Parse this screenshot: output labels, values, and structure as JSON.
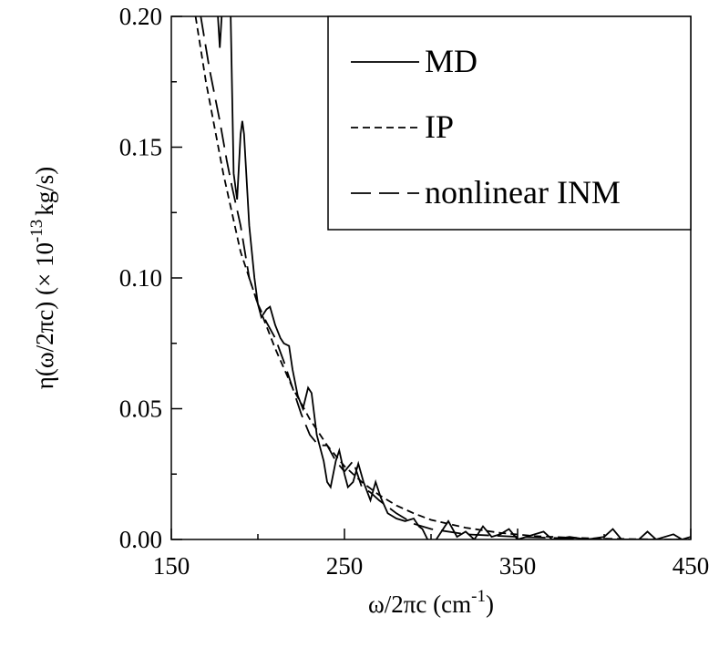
{
  "chart_data": {
    "type": "line",
    "xlabel": [
      "ω/2πc (cm",
      "-1",
      ")"
    ],
    "ylabel": [
      "η(ω/2πc) (× 10",
      "-13",
      "kg/s)"
    ],
    "xlim": [
      150,
      450
    ],
    "ylim": [
      0,
      0.2
    ],
    "xticks": [
      150,
      250,
      350,
      450
    ],
    "xminor_ticks": [
      200,
      300,
      400
    ],
    "yticks": [
      {
        "value": 0,
        "label": "0.00"
      },
      0.05,
      {
        "value": 0.1,
        "label": "0.10"
      },
      0.15,
      {
        "value": 0.2,
        "label": "0.20"
      }
    ],
    "yminor_ticks": [
      0.025,
      0.075,
      0.125,
      0.175
    ],
    "legend": "upper right",
    "series": [
      {
        "name": "MD",
        "color": "#000000",
        "dash": "solid",
        "x": [
          176,
          178,
          180,
          184,
          186,
          188,
          190,
          191,
          192,
          195,
          198,
          200,
          202,
          205,
          207,
          210,
          213,
          215,
          218,
          220,
          223,
          226,
          229,
          231,
          234,
          238,
          240,
          242,
          245,
          247,
          250,
          252,
          255,
          258,
          261,
          265,
          268,
          271,
          275,
          280,
          285,
          290,
          293,
          295,
          298,
          300,
          305,
          310,
          315,
          320,
          325,
          330,
          335,
          340,
          345,
          350,
          355,
          360,
          365,
          370,
          380,
          390,
          400,
          405,
          410,
          420,
          425,
          430,
          440,
          445,
          450
        ],
        "values": [
          0.21,
          0.188,
          0.21,
          0.21,
          0.14,
          0.13,
          0.155,
          0.16,
          0.155,
          0.12,
          0.1,
          0.09,
          0.085,
          0.088,
          0.089,
          0.082,
          0.077,
          0.075,
          0.074,
          0.065,
          0.055,
          0.05,
          0.058,
          0.056,
          0.04,
          0.03,
          0.022,
          0.02,
          0.03,
          0.034,
          0.025,
          0.02,
          0.022,
          0.029,
          0.022,
          0.015,
          0.022,
          0.016,
          0.01,
          0.008,
          0.007,
          0.008,
          0.005,
          0.004,
          0,
          -0.003,
          0.002,
          0.007,
          0.001,
          0.003,
          0,
          0.005,
          0.001,
          0.002,
          0.004,
          0,
          0.001,
          0.002,
          0.003,
          0,
          0.001,
          0,
          0.001,
          0.004,
          0,
          0,
          0.003,
          0,
          0.002,
          0,
          0.001
        ]
      },
      {
        "name": "IP",
        "color": "#000000",
        "dash": "short",
        "x": [
          164,
          170,
          180,
          190,
          200,
          210,
          220,
          230,
          240,
          250,
          260,
          270,
          280,
          290,
          300,
          320,
          340,
          360,
          380,
          400,
          420,
          450
        ],
        "values": [
          0.2,
          0.175,
          0.14,
          0.11,
          0.09,
          0.073,
          0.058,
          0.046,
          0.036,
          0.028,
          0.022,
          0.017,
          0.013,
          0.01,
          0.0075,
          0.0045,
          0.0025,
          0.0013,
          0.0007,
          0.0003,
          0.0001,
          0
        ]
      },
      {
        "name": "nonlinear INM",
        "color": "#000000",
        "dash": "long",
        "x": [
          167,
          172,
          178,
          182,
          185,
          190,
          195,
          200,
          205,
          210,
          215,
          220,
          225,
          230,
          235,
          240,
          245,
          250,
          255,
          260,
          265,
          270,
          280,
          290,
          300,
          320,
          350,
          400,
          450
        ],
        "values": [
          0.2,
          0.18,
          0.16,
          0.145,
          0.135,
          0.12,
          0.1,
          0.09,
          0.083,
          0.077,
          0.068,
          0.058,
          0.048,
          0.04,
          0.036,
          0.036,
          0.03,
          0.026,
          0.03,
          0.02,
          0.018,
          0.015,
          0.01,
          0.006,
          0.004,
          0.002,
          0.001,
          0,
          0
        ]
      }
    ]
  }
}
